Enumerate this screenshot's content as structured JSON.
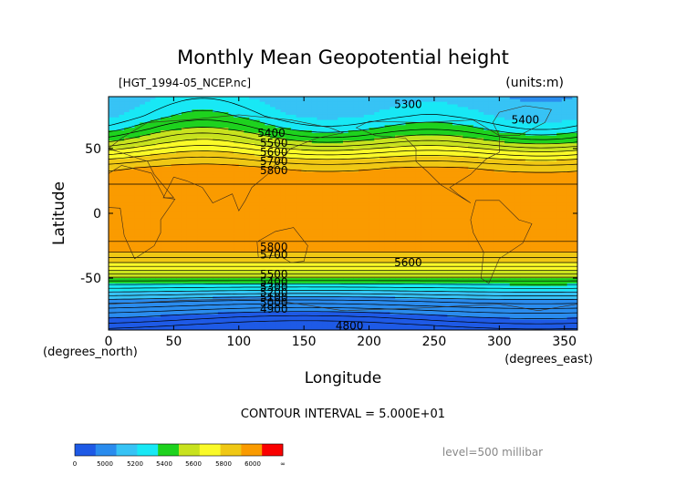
{
  "chart_data": {
    "type": "heatmap",
    "title": "Monthly Mean Geopotential height",
    "file_label": "[HGT_1994-05_NCEP.nc]",
    "units_label": "(units:m)",
    "xlabel": "Longitude",
    "ylabel": "Latitude",
    "x_unit_label": "(degrees_east)",
    "y_unit_label": "(degrees_north)",
    "xlim": [
      0,
      360
    ],
    "ylim": [
      -90,
      90
    ],
    "x_ticks": [
      0,
      50,
      100,
      150,
      200,
      250,
      300,
      350
    ],
    "y_ticks": [
      50,
      0,
      -50
    ],
    "contour_interval_text": "CONTOUR INTERVAL = 5.000E+01",
    "level_text": "level=500 millibar",
    "bands": [
      {
        "lower": 4800,
        "upper": 5000,
        "color": "#1e5ae6"
      },
      {
        "lower": 5000,
        "upper": 5200,
        "color": "#2a8cee"
      },
      {
        "lower": 5200,
        "upper": 5300,
        "color": "#37c3f5"
      },
      {
        "lower": 5300,
        "upper": 5400,
        "color": "#18e8f5"
      },
      {
        "lower": 5400,
        "upper": 5500,
        "color": "#1ed21e"
      },
      {
        "lower": 5500,
        "upper": 5600,
        "color": "#c8e21e"
      },
      {
        "lower": 5600,
        "upper": 5700,
        "color": "#fafa28"
      },
      {
        "lower": 5700,
        "upper": 5800,
        "color": "#f0c814"
      },
      {
        "lower": 5800,
        "upper": 6000,
        "color": "#fa9b00"
      },
      {
        "lower": 6000,
        "upper": 6100,
        "color": "#fa0000"
      }
    ],
    "zonal_profile": [
      {
        "lat": 90,
        "value": 5250
      },
      {
        "lat": 75,
        "value": 5330
      },
      {
        "lat": 65,
        "value": 5420
      },
      {
        "lat": 55,
        "value": 5540
      },
      {
        "lat": 48,
        "value": 5640
      },
      {
        "lat": 42,
        "value": 5720
      },
      {
        "lat": 35,
        "value": 5800
      },
      {
        "lat": 20,
        "value": 5860
      },
      {
        "lat": 0,
        "value": 5870
      },
      {
        "lat": -20,
        "value": 5860
      },
      {
        "lat": -30,
        "value": 5800
      },
      {
        "lat": -38,
        "value": 5700
      },
      {
        "lat": -45,
        "value": 5580
      },
      {
        "lat": -52,
        "value": 5450
      },
      {
        "lat": -60,
        "value": 5300
      },
      {
        "lat": -68,
        "value": 5150
      },
      {
        "lat": -78,
        "value": 5000
      },
      {
        "lat": -90,
        "value": 4850
      }
    ],
    "contour_labels": [
      {
        "text": "5300",
        "lon": 230,
        "lat": 84
      },
      {
        "text": "5400",
        "lon": 320,
        "lat": 72
      },
      {
        "text": "5400",
        "lon": 125,
        "lat": 62
      },
      {
        "text": "5500",
        "lon": 127,
        "lat": 54
      },
      {
        "text": "5600",
        "lon": 127,
        "lat": 47
      },
      {
        "text": "5700",
        "lon": 127,
        "lat": 40
      },
      {
        "text": "5800",
        "lon": 127,
        "lat": 33
      },
      {
        "text": "5800",
        "lon": 127,
        "lat": -26
      },
      {
        "text": "5700",
        "lon": 127,
        "lat": -32
      },
      {
        "text": "5600",
        "lon": 230,
        "lat": -38
      },
      {
        "text": "5500",
        "lon": 127,
        "lat": -47
      },
      {
        "text": "5400",
        "lon": 127,
        "lat": -53
      },
      {
        "text": "5300",
        "lon": 127,
        "lat": -57
      },
      {
        "text": "5200",
        "lon": 127,
        "lat": -61
      },
      {
        "text": "5100",
        "lon": 127,
        "lat": -65
      },
      {
        "text": "5000",
        "lon": 127,
        "lat": -69
      },
      {
        "text": "4900",
        "lon": 127,
        "lat": -74
      },
      {
        "text": "4800",
        "lon": 185,
        "lat": -87
      }
    ],
    "legend": {
      "colors": [
        "#1e5ae6",
        "#2a8cee",
        "#37c3f5",
        "#18e8f5",
        "#1ed21e",
        "#c8e21e",
        "#fafa28",
        "#f0c814",
        "#fa9b00",
        "#fa0000"
      ],
      "tick_labels": [
        "0",
        "5000",
        "5200",
        "5400",
        "5600",
        "5800",
        "6000",
        "∞"
      ]
    }
  }
}
